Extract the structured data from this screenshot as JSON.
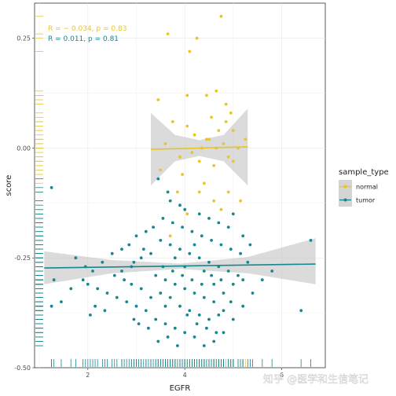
{
  "chart_data": {
    "type": "scatter",
    "title": "",
    "xlabel": "EGFR",
    "ylabel": "score",
    "xlim": [
      0.9,
      6.9
    ],
    "ylim": [
      -0.5,
      0.33
    ],
    "x_ticks": [
      2,
      4,
      6
    ],
    "y_ticks": [
      0.25,
      0.0,
      -0.25,
      -0.5
    ],
    "y_tick_labels": [
      "0.25",
      "0.00",
      "-0.25",
      "-0.50"
    ],
    "grid": true,
    "legend": {
      "title": "sample_type",
      "position": "right",
      "entries": [
        "normal",
        "tumor"
      ]
    },
    "colors": {
      "normal": "#E7C52B",
      "tumor": "#17878F",
      "band": "#bdbdbd"
    },
    "annotations": [
      {
        "series": "normal",
        "text": "R = − 0.034, p = 0.83"
      },
      {
        "series": "tumor",
        "text": "R = 0.011, p = 0.81"
      }
    ],
    "series": [
      {
        "name": "normal",
        "fit": {
          "x": [
            3.3,
            5.3
          ],
          "y": [
            -0.003,
            0.003
          ]
        },
        "band": {
          "x": [
            3.3,
            3.8,
            4.3,
            4.8,
            5.3
          ],
          "lower": [
            -0.085,
            -0.03,
            -0.018,
            -0.03,
            -0.085
          ],
          "upper": [
            0.08,
            0.03,
            0.018,
            0.03,
            0.09
          ]
        },
        "points": [
          [
            3.65,
            0.26
          ],
          [
            4.75,
            0.3
          ],
          [
            4.25,
            0.25
          ],
          [
            4.1,
            0.22
          ],
          [
            4.65,
            0.13
          ],
          [
            3.75,
            0.06
          ],
          [
            4.2,
            0.03
          ],
          [
            4.5,
            0.02
          ],
          [
            4.8,
            0.01
          ],
          [
            5.1,
            0.0
          ],
          [
            3.9,
            -0.02
          ],
          [
            4.3,
            -0.03
          ],
          [
            4.6,
            -0.04
          ],
          [
            5.0,
            -0.03
          ],
          [
            3.5,
            -0.05
          ],
          [
            4.4,
            -0.08
          ],
          [
            4.9,
            -0.1
          ],
          [
            4.7,
            0.04
          ],
          [
            4.05,
            0.05
          ],
          [
            4.85,
            0.06
          ],
          [
            4.55,
            0.07
          ],
          [
            4.3,
            -0.1
          ],
          [
            3.85,
            -0.1
          ],
          [
            5.15,
            -0.12
          ],
          [
            4.6,
            -0.12
          ],
          [
            4.75,
            -0.14
          ],
          [
            4.95,
            0.08
          ],
          [
            4.45,
            0.12
          ],
          [
            3.6,
            0.01
          ],
          [
            3.95,
            -0.06
          ],
          [
            4.15,
            -0.01
          ],
          [
            4.35,
            0.0
          ],
          [
            4.45,
            0.02
          ],
          [
            4.65,
            0.0
          ],
          [
            4.9,
            -0.02
          ],
          [
            5.0,
            0.04
          ],
          [
            5.25,
            0.02
          ],
          [
            3.45,
            0.11
          ],
          [
            4.05,
            0.12
          ],
          [
            4.85,
            0.1
          ],
          [
            4.05,
            -0.15
          ],
          [
            3.7,
            -0.2
          ]
        ]
      },
      {
        "name": "tumor",
        "fit": {
          "x": [
            1.1,
            6.7
          ],
          "y": [
            -0.273,
            -0.264
          ]
        },
        "band": {
          "x": [
            1.1,
            2.5,
            3.9,
            5.3,
            6.7
          ],
          "lower": [
            -0.31,
            -0.285,
            -0.275,
            -0.285,
            -0.31
          ],
          "upper": [
            -0.235,
            -0.255,
            -0.263,
            -0.248,
            -0.205
          ]
        },
        "points": [
          [
            3.65,
            -0.1
          ],
          [
            3.45,
            -0.07
          ],
          [
            3.7,
            -0.12
          ],
          [
            3.9,
            -0.13
          ],
          [
            4.0,
            -0.14
          ],
          [
            4.3,
            -0.15
          ],
          [
            4.5,
            -0.16
          ],
          [
            4.7,
            -0.17
          ],
          [
            4.9,
            -0.18
          ],
          [
            5.0,
            -0.15
          ],
          [
            5.2,
            -0.2
          ],
          [
            3.2,
            -0.19
          ],
          [
            3.0,
            -0.2
          ],
          [
            2.85,
            -0.22
          ],
          [
            2.7,
            -0.23
          ],
          [
            2.5,
            -0.24
          ],
          [
            2.3,
            -0.26
          ],
          [
            2.1,
            -0.28
          ],
          [
            1.9,
            -0.3
          ],
          [
            1.65,
            -0.32
          ],
          [
            1.45,
            -0.35
          ],
          [
            1.3,
            -0.3
          ],
          [
            1.25,
            -0.36
          ],
          [
            1.25,
            -0.09
          ],
          [
            6.6,
            -0.21
          ],
          [
            6.4,
            -0.37
          ],
          [
            5.8,
            -0.28
          ],
          [
            5.6,
            -0.3
          ],
          [
            5.4,
            -0.33
          ],
          [
            5.2,
            -0.36
          ],
          [
            5.0,
            -0.39
          ],
          [
            4.8,
            -0.42
          ],
          [
            4.6,
            -0.44
          ],
          [
            4.4,
            -0.45
          ],
          [
            4.2,
            -0.43
          ],
          [
            4.0,
            -0.42
          ],
          [
            3.8,
            -0.41
          ],
          [
            3.6,
            -0.4
          ],
          [
            3.4,
            -0.39
          ],
          [
            3.2,
            -0.37
          ],
          [
            3.0,
            -0.36
          ],
          [
            2.8,
            -0.35
          ],
          [
            2.6,
            -0.34
          ],
          [
            2.4,
            -0.33
          ],
          [
            2.2,
            -0.32
          ],
          [
            2.0,
            -0.31
          ],
          [
            3.5,
            -0.21
          ],
          [
            3.7,
            -0.22
          ],
          [
            3.9,
            -0.23
          ],
          [
            4.1,
            -0.24
          ],
          [
            4.3,
            -0.25
          ],
          [
            4.5,
            -0.26
          ],
          [
            4.7,
            -0.27
          ],
          [
            4.9,
            -0.28
          ],
          [
            5.1,
            -0.29
          ],
          [
            5.3,
            -0.26
          ],
          [
            3.3,
            -0.24
          ],
          [
            3.1,
            -0.25
          ],
          [
            2.9,
            -0.27
          ],
          [
            2.7,
            -0.28
          ],
          [
            3.4,
            -0.29
          ],
          [
            3.6,
            -0.3
          ],
          [
            3.8,
            -0.31
          ],
          [
            4.0,
            -0.32
          ],
          [
            4.2,
            -0.33
          ],
          [
            4.4,
            -0.34
          ],
          [
            4.6,
            -0.35
          ],
          [
            4.8,
            -0.33
          ],
          [
            5.0,
            -0.31
          ],
          [
            5.2,
            -0.3
          ],
          [
            3.5,
            -0.33
          ],
          [
            3.7,
            -0.34
          ],
          [
            3.9,
            -0.36
          ],
          [
            4.1,
            -0.37
          ],
          [
            4.3,
            -0.38
          ],
          [
            4.5,
            -0.39
          ],
          [
            4.7,
            -0.38
          ],
          [
            3.3,
            -0.34
          ],
          [
            3.1,
            -0.32
          ],
          [
            2.9,
            -0.31
          ],
          [
            2.75,
            -0.3
          ],
          [
            3.55,
            -0.27
          ],
          [
            3.75,
            -0.28
          ],
          [
            3.95,
            -0.29
          ],
          [
            4.15,
            -0.3
          ],
          [
            4.35,
            -0.31
          ],
          [
            4.55,
            -0.29
          ],
          [
            4.75,
            -0.3
          ],
          [
            4.95,
            -0.35
          ],
          [
            3.45,
            -0.44
          ],
          [
            3.65,
            -0.43
          ],
          [
            3.85,
            -0.45
          ],
          [
            4.05,
            -0.38
          ],
          [
            4.25,
            -0.4
          ],
          [
            4.45,
            -0.41
          ],
          [
            4.65,
            -0.42
          ],
          [
            3.25,
            -0.41
          ],
          [
            3.05,
            -0.4
          ],
          [
            2.95,
            -0.39
          ],
          [
            2.55,
            -0.29
          ],
          [
            2.35,
            -0.37
          ],
          [
            2.15,
            -0.36
          ],
          [
            1.95,
            -0.27
          ],
          [
            1.75,
            -0.25
          ],
          [
            2.05,
            -0.38
          ],
          [
            3.35,
            -0.18
          ],
          [
            3.55,
            -0.16
          ],
          [
            3.75,
            -0.17
          ],
          [
            3.95,
            -0.18
          ],
          [
            4.15,
            -0.19
          ],
          [
            4.35,
            -0.2
          ],
          [
            4.55,
            -0.21
          ],
          [
            4.75,
            -0.22
          ],
          [
            4.95,
            -0.23
          ],
          [
            5.15,
            -0.24
          ],
          [
            5.35,
            -0.22
          ],
          [
            3.15,
            -0.23
          ],
          [
            2.95,
            -0.26
          ],
          [
            4.2,
            -0.22
          ],
          [
            4.6,
            -0.31
          ],
          [
            4.0,
            -0.27
          ],
          [
            3.6,
            -0.36
          ],
          [
            4.8,
            -0.37
          ],
          [
            4.4,
            -0.28
          ],
          [
            3.8,
            -0.25
          ]
        ]
      }
    ]
  },
  "watermark": "知乎 @医学和生信笔记"
}
